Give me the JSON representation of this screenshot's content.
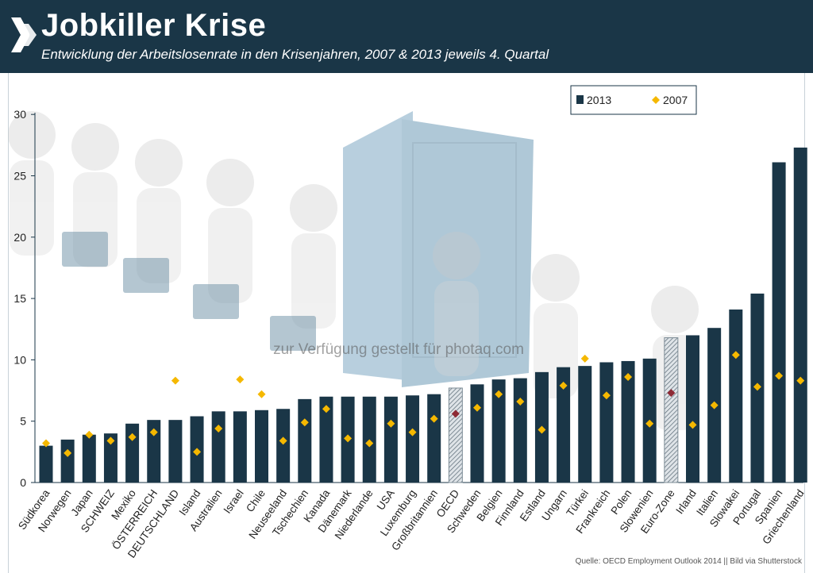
{
  "header": {
    "title": "Jobkiller Krise",
    "subtitle": "Entwicklung der Arbeitslosenrate in den Krisenjahren, 2007 & 2013 jeweils 4. Quartal",
    "background_color": "#1a3647"
  },
  "watermark": "zur Verfügung gestellt für photaq.com",
  "source": "Quelle: OECD Employment Outlook 2014 || Bild via Shutterstock",
  "chart_data": {
    "type": "bar",
    "title": "Jobkiller Krise",
    "xlabel": "",
    "ylabel": "",
    "ylim": [
      0,
      30
    ],
    "yticks": [
      "0",
      "5",
      "10",
      "15",
      "20",
      "25",
      "30"
    ],
    "grid": false,
    "legend_position": "top-right",
    "categories": [
      "Südkorea",
      "Norwegen",
      "Japan",
      "SCHWEIZ",
      "Mexiko",
      "ÖSTERREICH",
      "DEUTSCHLAND",
      "Island",
      "Australien",
      "Israel",
      "Chile",
      "Neuseeland",
      "Tschechien",
      "Kanada",
      "Dänemark",
      "Niederlande",
      "USA",
      "Luxemburg",
      "Großbritannien",
      "OECD",
      "Schweden",
      "Belgien",
      "Finnland",
      "Estland",
      "Ungarn",
      "Türkei",
      "Frankreich",
      "Polen",
      "Slowenien",
      "Euro-Zone",
      "Irland",
      "Italien",
      "Slowakei",
      "Portugal",
      "Spanien",
      "Griechenland"
    ],
    "highlighted_categories": [
      "OECD",
      "Euro-Zone"
    ],
    "series": [
      {
        "name": "2013",
        "marker": "bar",
        "color": "#1a3647",
        "values": [
          3.0,
          3.5,
          3.9,
          4.0,
          4.8,
          5.1,
          5.1,
          5.4,
          5.8,
          5.8,
          5.9,
          6.0,
          6.8,
          7.0,
          7.0,
          7.0,
          7.0,
          7.1,
          7.2,
          7.7,
          8.0,
          8.4,
          8.5,
          9.0,
          9.4,
          9.5,
          9.8,
          9.9,
          10.1,
          11.8,
          12.0,
          12.6,
          14.1,
          15.4,
          26.1,
          27.3
        ]
      },
      {
        "name": "2007",
        "marker": "diamond",
        "color": "#f5b800",
        "highlight_color": "#8e2a35",
        "values": [
          3.2,
          2.4,
          3.9,
          3.4,
          3.7,
          4.1,
          8.3,
          2.5,
          4.4,
          8.4,
          7.2,
          3.4,
          4.9,
          6.0,
          3.6,
          3.2,
          4.8,
          4.1,
          5.2,
          5.6,
          6.1,
          7.2,
          6.6,
          4.3,
          7.9,
          10.1,
          7.1,
          8.6,
          4.8,
          7.3,
          4.7,
          6.3,
          10.4,
          7.8,
          8.7,
          8.3
        ]
      }
    ]
  }
}
